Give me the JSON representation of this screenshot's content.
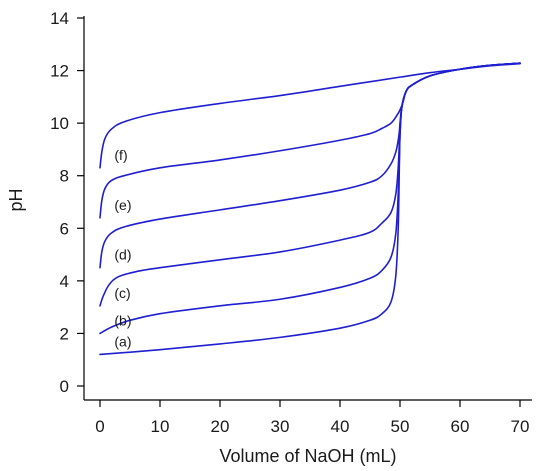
{
  "chart_data": {
    "type": "line",
    "title": "",
    "xlabel": "Volume of NaOH (mL)",
    "ylabel": "pH",
    "xlim": [
      0,
      70
    ],
    "ylim": [
      0,
      14
    ],
    "x_ticks": [
      0,
      10,
      20,
      30,
      40,
      50,
      60,
      70
    ],
    "y_ticks": [
      0,
      2,
      4,
      6,
      8,
      10,
      12,
      14
    ],
    "grid": false,
    "legend": "none",
    "line_color": "#1f1fd0",
    "series": [
      {
        "label": "(a)",
        "points": [
          [
            0,
            1.2
          ],
          [
            10,
            1.38
          ],
          [
            20,
            1.6
          ],
          [
            30,
            1.85
          ],
          [
            40,
            2.2
          ],
          [
            45,
            2.5
          ],
          [
            47,
            2.75
          ],
          [
            48.5,
            3.2
          ],
          [
            49.3,
            4.2
          ],
          [
            49.7,
            6.0
          ],
          [
            49.9,
            8.5
          ],
          [
            50,
            9.5
          ],
          [
            50.3,
            10.6
          ],
          [
            51,
            11.2
          ],
          [
            52,
            11.45
          ],
          [
            55,
            11.8
          ],
          [
            60,
            12.05
          ],
          [
            65,
            12.2
          ],
          [
            70,
            12.28
          ]
        ]
      },
      {
        "label": "(b)",
        "points": [
          [
            0,
            2.0
          ],
          [
            2,
            2.25
          ],
          [
            5,
            2.5
          ],
          [
            10,
            2.75
          ],
          [
            20,
            3.05
          ],
          [
            30,
            3.3
          ],
          [
            40,
            3.75
          ],
          [
            45,
            4.1
          ],
          [
            47,
            4.4
          ],
          [
            48.5,
            4.9
          ],
          [
            49.3,
            5.8
          ],
          [
            49.7,
            7.3
          ],
          [
            49.9,
            8.8
          ],
          [
            50,
            9.6
          ],
          [
            50.3,
            10.6
          ],
          [
            51,
            11.2
          ],
          [
            52,
            11.45
          ],
          [
            55,
            11.8
          ],
          [
            60,
            12.05
          ],
          [
            65,
            12.2
          ],
          [
            70,
            12.28
          ]
        ]
      },
      {
        "label": "(c)",
        "points": [
          [
            0,
            3.05
          ],
          [
            0.5,
            3.4
          ],
          [
            1.5,
            3.85
          ],
          [
            3,
            4.15
          ],
          [
            6,
            4.35
          ],
          [
            10,
            4.5
          ],
          [
            20,
            4.8
          ],
          [
            30,
            5.1
          ],
          [
            40,
            5.55
          ],
          [
            45,
            5.85
          ],
          [
            47,
            6.2
          ],
          [
            48.5,
            6.6
          ],
          [
            49.3,
            7.3
          ],
          [
            49.7,
            8.3
          ],
          [
            49.9,
            9.3
          ],
          [
            50,
            9.8
          ],
          [
            50.3,
            10.6
          ],
          [
            51,
            11.2
          ],
          [
            52,
            11.45
          ],
          [
            55,
            11.8
          ],
          [
            60,
            12.05
          ],
          [
            65,
            12.2
          ],
          [
            70,
            12.28
          ]
        ]
      },
      {
        "label": "(d)",
        "points": [
          [
            0,
            4.5
          ],
          [
            0.3,
            5.1
          ],
          [
            0.8,
            5.5
          ],
          [
            1.8,
            5.8
          ],
          [
            4,
            6.05
          ],
          [
            10,
            6.35
          ],
          [
            20,
            6.7
          ],
          [
            30,
            7.05
          ],
          [
            40,
            7.45
          ],
          [
            45,
            7.75
          ],
          [
            47,
            8.0
          ],
          [
            48.5,
            8.45
          ],
          [
            49.3,
            8.9
          ],
          [
            49.7,
            9.35
          ],
          [
            49.9,
            9.7
          ],
          [
            50,
            10.0
          ],
          [
            50.3,
            10.6
          ],
          [
            51,
            11.2
          ],
          [
            52,
            11.45
          ],
          [
            55,
            11.8
          ],
          [
            60,
            12.05
          ],
          [
            65,
            12.2
          ],
          [
            70,
            12.28
          ]
        ]
      },
      {
        "label": "(e)",
        "points": [
          [
            0,
            6.4
          ],
          [
            0.3,
            7.05
          ],
          [
            0.8,
            7.5
          ],
          [
            1.8,
            7.8
          ],
          [
            4,
            8.0
          ],
          [
            10,
            8.3
          ],
          [
            20,
            8.6
          ],
          [
            30,
            8.95
          ],
          [
            40,
            9.35
          ],
          [
            45,
            9.6
          ],
          [
            47,
            9.8
          ],
          [
            48.5,
            10.0
          ],
          [
            49.5,
            10.3
          ],
          [
            50,
            10.5
          ],
          [
            50.5,
            10.8
          ],
          [
            51,
            11.2
          ],
          [
            52,
            11.45
          ],
          [
            55,
            11.8
          ],
          [
            60,
            12.05
          ],
          [
            65,
            12.2
          ],
          [
            70,
            12.28
          ]
        ]
      },
      {
        "label": "(f)",
        "points": [
          [
            0,
            8.3
          ],
          [
            0.3,
            8.9
          ],
          [
            0.8,
            9.4
          ],
          [
            1.8,
            9.75
          ],
          [
            4,
            10.05
          ],
          [
            10,
            10.4
          ],
          [
            20,
            10.75
          ],
          [
            30,
            11.05
          ],
          [
            40,
            11.4
          ],
          [
            50,
            11.75
          ],
          [
            55,
            11.92
          ],
          [
            60,
            12.05
          ],
          [
            65,
            12.18
          ],
          [
            70,
            12.26
          ]
        ]
      }
    ]
  }
}
